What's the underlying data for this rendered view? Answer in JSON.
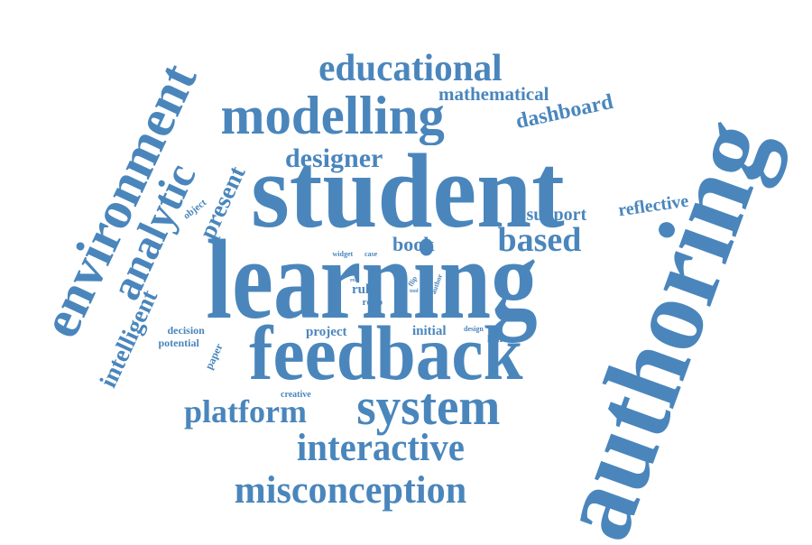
{
  "theme": {
    "word_color": "#4a86bc",
    "background": "#ffffff"
  },
  "words": [
    "student",
    "learning",
    "feedback",
    "authoring",
    "environment",
    "modelling",
    "system",
    "educational",
    "misconception",
    "interactive",
    "platform",
    "analytic",
    "based",
    "dashboard",
    "mathematical",
    "designer",
    "intelligent",
    "present",
    "support",
    "reflective",
    "book",
    "project",
    "initial",
    "decision",
    "potential",
    "paper",
    "creative",
    "object",
    "widget",
    "case",
    "rule",
    "rdap",
    "author",
    "real",
    "flip",
    "tool",
    "design",
    "learner"
  ]
}
